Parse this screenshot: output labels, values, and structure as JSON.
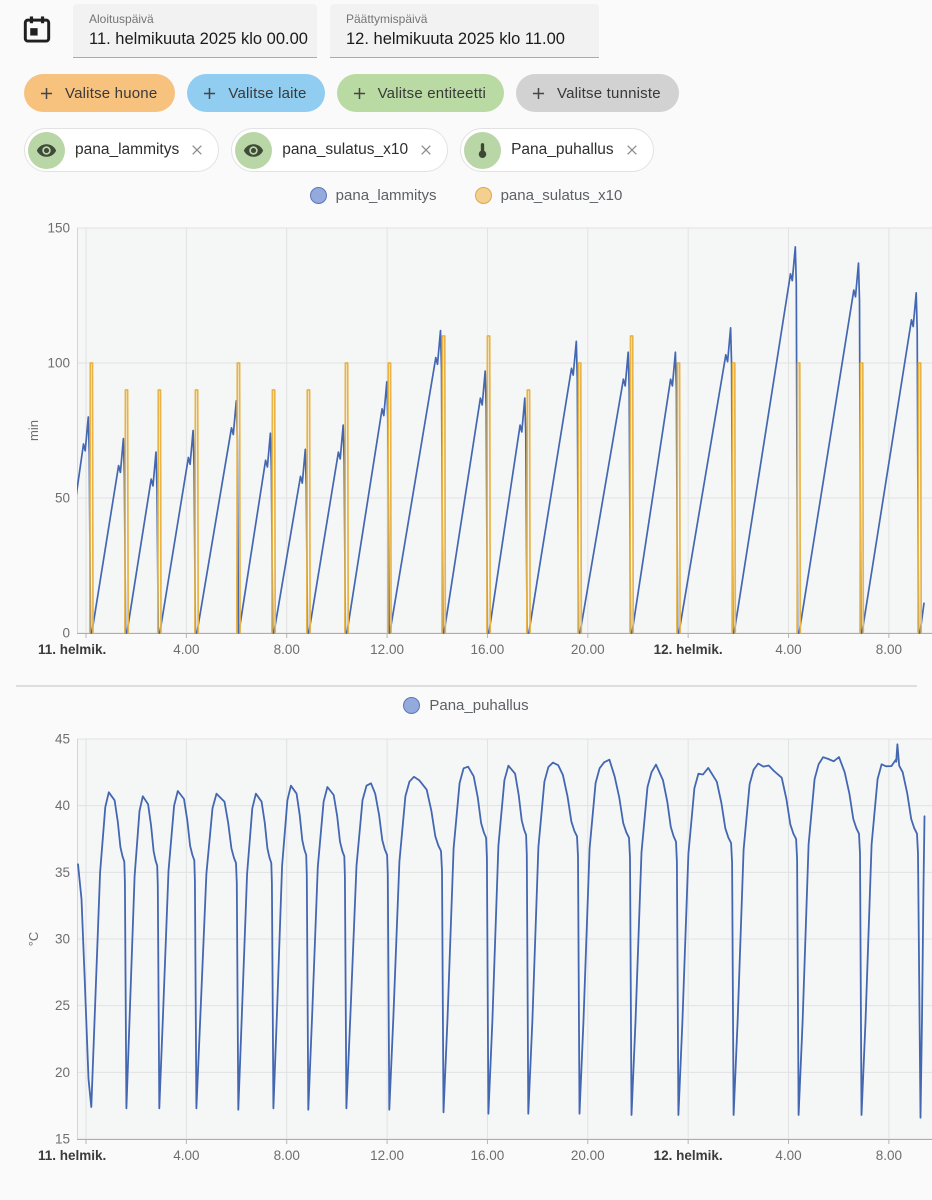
{
  "header": {
    "start": {
      "label": "Aloituspäivä",
      "value": "11. helmikuuta 2025 klo 00.00"
    },
    "end": {
      "label": "Päättymispäivä",
      "value": "12. helmikuuta 2025 klo 11.00"
    }
  },
  "filters": [
    {
      "label": "Valitse huone",
      "icon": "plus-icon",
      "color": "#f7c27e"
    },
    {
      "label": "Valitse laite",
      "icon": "plus-icon",
      "color": "#90cdf1"
    },
    {
      "label": "Valitse entiteetti",
      "icon": "plus-icon",
      "color": "#b9dba3"
    },
    {
      "label": "Valitse tunniste",
      "icon": "plus-icon",
      "color": "#d2d2d2"
    }
  ],
  "entities": [
    {
      "label": "pana_lammitys",
      "icon": "eye-icon",
      "icon_bg": "#b9d6a6"
    },
    {
      "label": "pana_sulatus_x10",
      "icon": "eye-icon",
      "icon_bg": "#b9d6a6"
    },
    {
      "label": "Pana_puhallus",
      "icon": "thermometer-icon",
      "icon_bg": "#b9d6a6"
    }
  ],
  "chart_data": [
    {
      "type": "line",
      "title": "",
      "ylabel": "min",
      "ylim": [
        0,
        150
      ],
      "yticks": [
        {
          "v": 0,
          "label": "0"
        },
        {
          "v": 50,
          "label": "50"
        },
        {
          "v": 100,
          "label": "100"
        },
        {
          "v": 150,
          "label": "150"
        }
      ],
      "x_axis": "time, hours since 2025-02-11 00:00",
      "xlim": [
        -0.36,
        33.73
      ],
      "xticks": [
        {
          "t": 0,
          "label": "11. helmik.",
          "bold": true
        },
        {
          "t": 4,
          "label": "4.00"
        },
        {
          "t": 8,
          "label": "8.00"
        },
        {
          "t": 12,
          "label": "12.00"
        },
        {
          "t": 16,
          "label": "16.00"
        },
        {
          "t": 20,
          "label": "20.00"
        },
        {
          "t": 24,
          "label": "12. helmik.",
          "bold": true
        },
        {
          "t": 28,
          "label": "4.00"
        },
        {
          "t": 32,
          "label": "8.00"
        }
      ],
      "legend": [
        {
          "label": "pana_lammitys",
          "fill": "#94aadc",
          "border": "#5b76bd"
        },
        {
          "label": "pana_sulatus_x10",
          "fill": "#f3d090",
          "border": "#dfa940"
        }
      ],
      "series": [
        {
          "name": "pana_lammitys",
          "color": "#4467b2",
          "shape": "sawtooth",
          "segments": [
            [
              -1.2,
              0.1,
              80
            ],
            [
              0.2,
              1.5,
              72
            ],
            [
              1.6,
              2.8,
              67
            ],
            [
              2.91,
              4.28,
              75
            ],
            [
              4.39,
              6.0,
              86
            ],
            [
              6.06,
              7.36,
              74
            ],
            [
              7.46,
              8.75,
              68
            ],
            [
              8.85,
              10.26,
              77
            ],
            [
              10.37,
              12.0,
              93
            ],
            [
              12.08,
              14.14,
              112
            ],
            [
              14.24,
              15.92,
              97
            ],
            [
              16.03,
              17.5,
              87
            ],
            [
              17.62,
              19.55,
              108
            ],
            [
              19.66,
              21.62,
              104
            ],
            [
              21.73,
              23.5,
              104
            ],
            [
              23.6,
              25.7,
              113
            ],
            [
              25.8,
              28.28,
              143
            ],
            [
              28.39,
              30.8,
              137
            ],
            [
              30.9,
              33.1,
              126
            ],
            [
              33.21,
              33.4,
              11,
              "cut"
            ]
          ]
        },
        {
          "name": "pana_sulatus_x10",
          "color": "#e9b445",
          "shape": "pulse",
          "pulses": [
            [
              0.16,
              100
            ],
            [
              1.56,
              90
            ],
            [
              2.87,
              90
            ],
            [
              4.35,
              90
            ],
            [
              6.02,
              100
            ],
            [
              7.42,
              90
            ],
            [
              8.81,
              90
            ],
            [
              10.33,
              100
            ],
            [
              12.04,
              100
            ],
            [
              14.2,
              110
            ],
            [
              15.99,
              110
            ],
            [
              17.58,
              90
            ],
            [
              19.62,
              100
            ],
            [
              21.69,
              110
            ],
            [
              23.56,
              100
            ],
            [
              25.76,
              100
            ],
            [
              28.35,
              100
            ],
            [
              30.86,
              100
            ],
            [
              33.17,
              100
            ]
          ]
        }
      ]
    },
    {
      "type": "line",
      "title": "",
      "ylabel": "°C",
      "ylim": [
        15,
        45
      ],
      "yticks": [
        {
          "v": 15,
          "label": "15"
        },
        {
          "v": 20,
          "label": "20"
        },
        {
          "v": 25,
          "label": "25"
        },
        {
          "v": 30,
          "label": "30"
        },
        {
          "v": 35,
          "label": "35"
        },
        {
          "v": 40,
          "label": "40"
        },
        {
          "v": 45,
          "label": "45"
        }
      ],
      "x_axis": "time, hours since 2025-02-11 00:00",
      "xlim": [
        -0.36,
        33.73
      ],
      "xticks": [
        {
          "t": 0,
          "label": "11. helmik.",
          "bold": true
        },
        {
          "t": 4,
          "label": "4.00"
        },
        {
          "t": 8,
          "label": "8.00"
        },
        {
          "t": 12,
          "label": "12.00"
        },
        {
          "t": 16,
          "label": "16.00"
        },
        {
          "t": 20,
          "label": "20.00"
        },
        {
          "t": 24,
          "label": "12. helmik.",
          "bold": true
        },
        {
          "t": 28,
          "label": "4.00"
        },
        {
          "t": 32,
          "label": "8.00"
        }
      ],
      "legend": [
        {
          "label": "Pana_puhallus",
          "fill": "#94aadc",
          "border": "#5b76bd"
        }
      ],
      "series": [
        {
          "name": "Pana_puhallus",
          "color": "#4467b2",
          "shape": "cycles",
          "prefix": [
            [
              -0.32,
              35.6
            ],
            [
              -0.18,
              33.0
            ],
            [
              -0.05,
              27.0
            ],
            [
              0.1,
              19.5
            ]
          ],
          "start_valley": 17.4,
          "cycles": [
            [
              0.16,
              1.56,
              41.5,
              17.3
            ],
            [
              1.56,
              2.87,
              41.2,
              17.3
            ],
            [
              2.87,
              4.35,
              41.6,
              17.3
            ],
            [
              4.35,
              6.02,
              41.4,
              17.2
            ],
            [
              6.02,
              7.42,
              41.4,
              17.3
            ],
            [
              7.42,
              8.81,
              42.0,
              17.2
            ],
            [
              8.81,
              10.33,
              41.9,
              17.3
            ],
            [
              10.33,
              12.04,
              42.0,
              17.2
            ],
            [
              12.04,
              14.2,
              42.3,
              17.0
            ],
            [
              14.2,
              15.99,
              43.3,
              16.9
            ],
            [
              15.99,
              17.58,
              43.5,
              16.9
            ],
            [
              17.58,
              19.62,
              43.4,
              16.9
            ],
            [
              19.62,
              21.69,
              43.3,
              16.8
            ],
            [
              21.69,
              23.56,
              43.0,
              16.8
            ],
            [
              23.56,
              25.76,
              42.9,
              16.8
            ],
            [
              25.76,
              28.35,
              43.2,
              16.8
            ],
            [
              28.35,
              30.86,
              43.6,
              16.8
            ],
            [
              30.86,
              33.17,
              43.6,
              16.6
            ]
          ],
          "peak_spike": {
            "cycle_index": 17,
            "value": 44.6
          },
          "tail": [
            [
              33.26,
              16.6
            ],
            [
              33.32,
              24.0
            ],
            [
              33.38,
              34.0
            ],
            [
              33.42,
              39.2
            ]
          ]
        }
      ]
    }
  ]
}
